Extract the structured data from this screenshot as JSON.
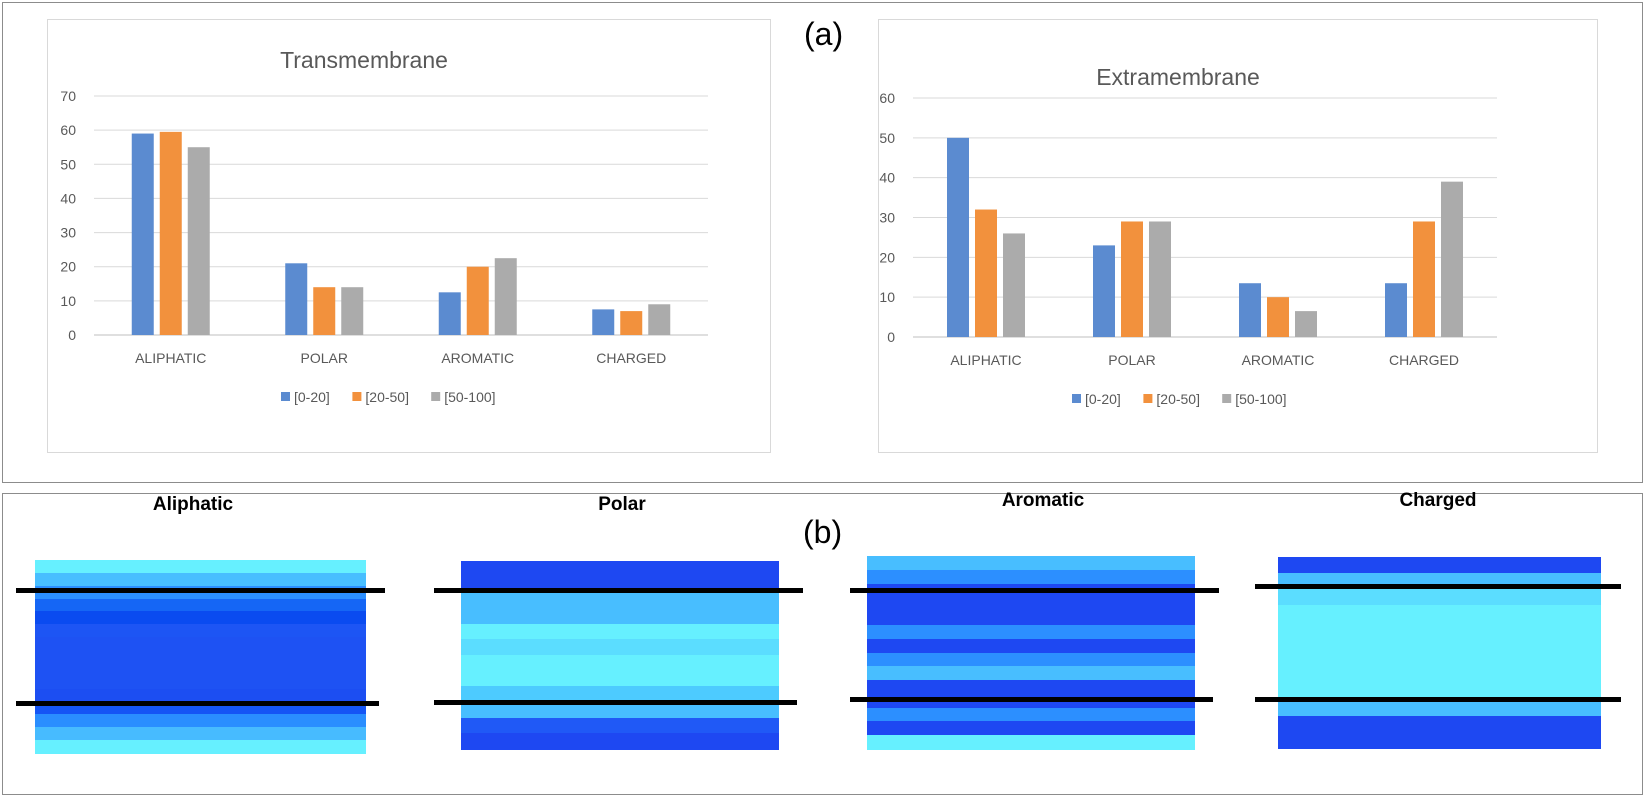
{
  "panel_labels": {
    "a": "(a)",
    "b": "(b)"
  },
  "colors": {
    "series": [
      "#5B8BD0",
      "#F2913D",
      "#ABABAB"
    ],
    "grid": "#D9D9D9",
    "axis_text": "#595959"
  },
  "chart_data": [
    {
      "type": "bar",
      "title": "Transmembrane",
      "categories": [
        "ALIPHATIC",
        "POLAR",
        "AROMATIC",
        "CHARGED"
      ],
      "series": [
        {
          "name": "[0-20]",
          "values": [
            59,
            21,
            12.5,
            7.5
          ]
        },
        {
          "name": "[20-50]",
          "values": [
            59.5,
            14,
            20,
            7
          ]
        },
        {
          "name": "[50-100]",
          "values": [
            55,
            14,
            22.5,
            9
          ]
        }
      ],
      "yticks": [
        0,
        10,
        20,
        30,
        40,
        50,
        60,
        70
      ],
      "ylim": [
        0,
        70
      ],
      "xlabel": "",
      "ylabel": "",
      "grid": true,
      "legend": "bottom"
    },
    {
      "type": "bar",
      "title": "Extramembrane",
      "categories": [
        "ALIPHATIC",
        "POLAR",
        "AROMATIC",
        "CHARGED"
      ],
      "series": [
        {
          "name": "[0-20]",
          "values": [
            50,
            23,
            13.5,
            13.5
          ]
        },
        {
          "name": "[20-50]",
          "values": [
            32,
            29,
            10,
            29
          ]
        },
        {
          "name": "[50-100]",
          "values": [
            26,
            29,
            6.5,
            39
          ]
        }
      ],
      "yticks": [
        0,
        10,
        20,
        30,
        40,
        50,
        60
      ],
      "ylim": [
        0,
        60
      ],
      "xlabel": "",
      "ylabel": "",
      "grid": true,
      "legend": "bottom"
    }
  ],
  "heatmaps": [
    {
      "title": "Aliphatic",
      "stripes": [
        "#66F0FF",
        "#48BEFF",
        "#2C8FFF",
        "#1566F5",
        "#0A4BF0",
        "#1D55F4",
        "#1E52F3",
        "#1E52F3",
        "#1E52F3",
        "#1E52F3",
        "#1C4EF2",
        "#1555F5",
        "#2A8EFF",
        "#47BBFF",
        "#66F0FF"
      ]
    },
    {
      "title": "Polar",
      "stripes": [
        "#1E48F2",
        "#1E48F2",
        "#48BEFF",
        "#48BEFF",
        "#66F0FF",
        "#5BDDFF",
        "#66F0FF",
        "#66F0FF",
        "#4DCBFF",
        "#48BEFF",
        "#2059F6",
        "#1E48F2"
      ]
    },
    {
      "title": "Aromatic",
      "stripes": [
        "#48BEFF",
        "#2C8FFF",
        "#1E48F2",
        "#1E48F2",
        "#1E48F2",
        "#2C8FFF",
        "#1E48F2",
        "#2C8FFF",
        "#48BEFF",
        "#1E48F2",
        "#1E48F2",
        "#2C8FFF",
        "#1E48F2",
        "#66F0FF"
      ]
    },
    {
      "title": "Charged",
      "stripes": [
        "#1E48F2",
        "#48BEFF",
        "#5BDDFF",
        "#66F0FF",
        "#66F0FF",
        "#66F0FF",
        "#66F0FF",
        "#66F0FF",
        "#66F0FF",
        "#48BEFF",
        "#1E48F2",
        "#1E48F2"
      ]
    }
  ]
}
